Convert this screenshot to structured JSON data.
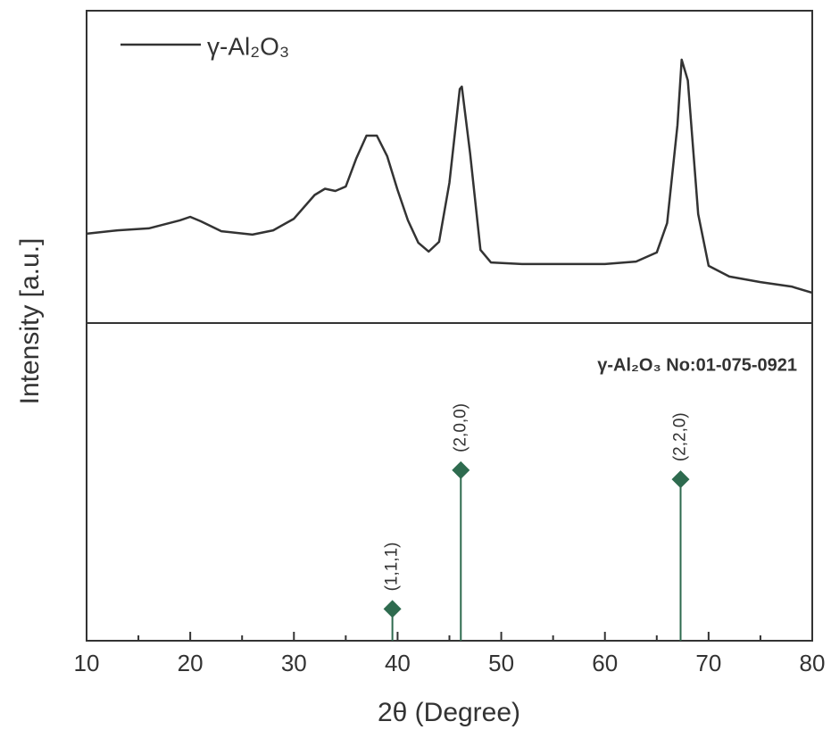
{
  "chart_data": [
    {
      "type": "line",
      "ylabel": "Intensity [a.u.]",
      "x": [
        10,
        13,
        16,
        19,
        20,
        21,
        23,
        26,
        28,
        30,
        32,
        33,
        34,
        35,
        36,
        37,
        38,
        39,
        40,
        41,
        42,
        43,
        44,
        45,
        46,
        46.2,
        47,
        48,
        49,
        52,
        55,
        60,
        63,
        65,
        66,
        67,
        67.4,
        68,
        69,
        70,
        72,
        75,
        78,
        80
      ],
      "series": [
        {
          "name": "γ-Al₂O₃",
          "color": "#333333",
          "values": [
            28.6,
            29.7,
            30.3,
            32.9,
            34,
            32.6,
            29.4,
            28.3,
            29.7,
            33.4,
            41,
            43,
            42.3,
            43.7,
            52.6,
            60,
            60,
            53.4,
            42.6,
            32.9,
            25.7,
            22.9,
            26,
            44.9,
            74.9,
            75.7,
            54.3,
            23.4,
            19.4,
            18.9,
            18.9,
            18.9,
            19.7,
            22.6,
            32,
            63.4,
            84.3,
            77.7,
            34.9,
            18.3,
            14.9,
            13.1,
            11.7,
            9.7
          ]
        }
      ],
      "xlim": [
        10,
        80
      ],
      "ylim": [
        0,
        100
      ]
    },
    {
      "type": "stem",
      "annotation": "γ-Al₂O₃ No:01-075-0921",
      "x": [
        39.5,
        46.1,
        67.3
      ],
      "values": [
        10,
        53.7,
        50.8
      ],
      "labels": [
        "(1,1,1)",
        "(2,0,0)",
        "(2,2,0)"
      ],
      "color": "#2e6b4f",
      "xlim": [
        10,
        80
      ],
      "ylim": [
        0,
        100
      ],
      "xticks": [
        10,
        20,
        30,
        40,
        50,
        60,
        70,
        80
      ],
      "xminorticks": [
        15,
        25,
        35,
        45,
        55,
        65,
        75
      ],
      "xlabel": "2θ (Degree)"
    }
  ]
}
